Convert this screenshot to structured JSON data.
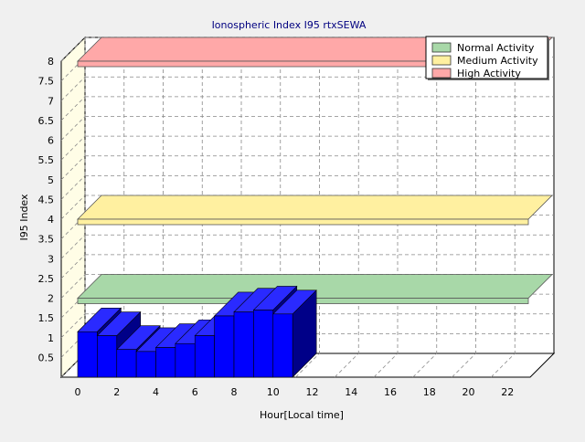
{
  "chart_data": {
    "type": "bar",
    "title": "Ionospheric Index I95 rtxSEWA",
    "xlabel": "Hour[Local time]",
    "ylabel": "I95 Index",
    "xlim": [
      0,
      24
    ],
    "ylim": [
      0,
      8
    ],
    "x_ticks": [
      0,
      2,
      4,
      6,
      8,
      10,
      12,
      14,
      16,
      18,
      20,
      22
    ],
    "y_ticks": [
      0.5,
      1,
      1.5,
      2,
      2.5,
      3,
      3.5,
      4,
      4.5,
      5,
      5.5,
      6,
      6.5,
      7,
      7.5,
      8
    ],
    "grid": true,
    "legend_position": "top-right",
    "x": [
      0,
      1,
      2,
      3,
      4,
      5,
      6,
      7,
      8,
      9,
      10
    ],
    "values": [
      1.15,
      1.05,
      0.7,
      0.65,
      0.75,
      0.85,
      1.05,
      1.55,
      1.65,
      1.7,
      1.6
    ],
    "bar_color": "#0000ff",
    "bands": [
      {
        "name": "Normal Activity",
        "value": 2,
        "color": "#a8d8a8"
      },
      {
        "name": "Medium Activity",
        "value": 4,
        "color": "#fff0a0"
      },
      {
        "name": "High Activity",
        "value": 8,
        "color": "#ffa8a8"
      }
    ]
  }
}
